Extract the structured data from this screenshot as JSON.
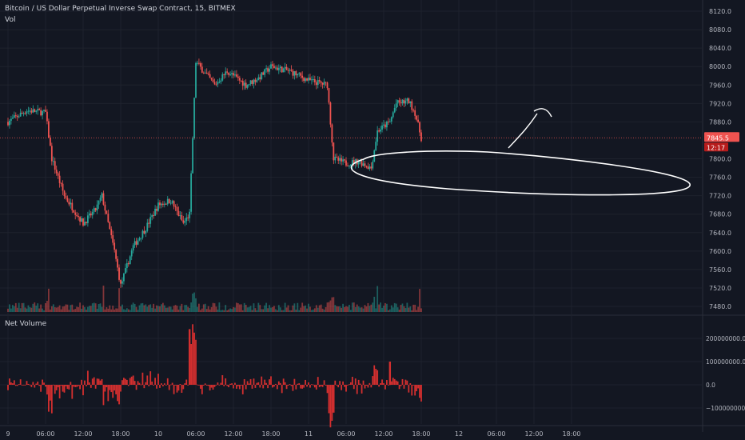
{
  "header": {
    "symbol_line": "Bitcoin / US Dollar Perpetual Inverse Swap Contract, 15, BITMEX",
    "volume_label": "Vol",
    "indicator_label": "Net Volume"
  },
  "price_axis": {
    "ticks": [
      "8120.0",
      "8080.0",
      "8040.0",
      "8000.0",
      "7960.0",
      "7920.0",
      "7880.0",
      "7800.0",
      "7760.0",
      "7720.0",
      "7680.0",
      "7640.0",
      "7600.0",
      "7560.0",
      "7520.0",
      "7480.0"
    ],
    "last_price": "7845.5",
    "countdown": "12:17"
  },
  "indicator_axis": {
    "ticks": [
      "200000000.0",
      "100000000.0",
      "0.0",
      "−100000000.0"
    ]
  },
  "time_axis": {
    "labels": [
      "9",
      "06:00",
      "12:00",
      "18:00",
      "10",
      "06:00",
      "12:00",
      "18:00",
      "11",
      "06:00",
      "12:00",
      "18:00",
      "12",
      "06:00",
      "12:00",
      "18:00"
    ]
  },
  "colors": {
    "up": "#26a69a",
    "down": "#ef5350",
    "net_volume": "#d32f2f",
    "background": "#131722",
    "price_label": "#ef5350"
  },
  "chart_data": [
    {
      "type": "candlestick",
      "title": "Bitcoin / US Dollar Perpetual Inverse Swap Contract, 15, BITMEX",
      "x_range": [
        "9 00:00",
        "12 18:00"
      ],
      "y_range": [
        7470,
        8135
      ],
      "last_price": 7845.5,
      "price_path": [
        {
          "t": "9 00:00",
          "price": 7880
        },
        {
          "t": "9 03:00",
          "price": 7905
        },
        {
          "t": "9 06:00",
          "price": 7900
        },
        {
          "t": "9 07:00",
          "price": 7800
        },
        {
          "t": "9 09:00",
          "price": 7720
        },
        {
          "t": "9 12:00",
          "price": 7660
        },
        {
          "t": "9 14:00",
          "price": 7690
        },
        {
          "t": "9 15:00",
          "price": 7720
        },
        {
          "t": "9 17:00",
          "price": 7600
        },
        {
          "t": "9 18:00",
          "price": 7525
        },
        {
          "t": "9 20:00",
          "price": 7610
        },
        {
          "t": "9 22:00",
          "price": 7650
        },
        {
          "t": "10 00:00",
          "price": 7700
        },
        {
          "t": "10 02:00",
          "price": 7710
        },
        {
          "t": "10 04:00",
          "price": 7660
        },
        {
          "t": "10 05:00",
          "price": 7680
        },
        {
          "t": "10 06:00",
          "price": 8010
        },
        {
          "t": "10 09:00",
          "price": 7960
        },
        {
          "t": "10 11:00",
          "price": 7990
        },
        {
          "t": "10 14:00",
          "price": 7960
        },
        {
          "t": "10 16:00",
          "price": 7975
        },
        {
          "t": "10 18:00",
          "price": 8000
        },
        {
          "t": "10 21:00",
          "price": 7990
        },
        {
          "t": "11 00:00",
          "price": 7970
        },
        {
          "t": "11 03:00",
          "price": 7960
        },
        {
          "t": "11 04:00",
          "price": 7800
        },
        {
          "t": "11 06:00",
          "price": 7790
        },
        {
          "t": "11 08:00",
          "price": 7795
        },
        {
          "t": "11 10:00",
          "price": 7780
        },
        {
          "t": "11 11:00",
          "price": 7860
        },
        {
          "t": "11 13:00",
          "price": 7880
        },
        {
          "t": "11 14:00",
          "price": 7920
        },
        {
          "t": "11 16:00",
          "price": 7925
        },
        {
          "t": "11 17:00",
          "price": 7900
        },
        {
          "t": "11 18:00",
          "price": 7845
        }
      ],
      "net_volume_ticks": [
        200000000,
        100000000,
        0,
        -100000000
      ],
      "net_volume_peaks": [
        {
          "t": "10 05:00",
          "value": 240000000
        },
        {
          "t": "11 04:00",
          "value": -120000000
        },
        {
          "t": "11 13:00",
          "value": 100000000
        }
      ]
    }
  ],
  "annotations": {
    "ellipse": "hand-drawn ellipse around 7760-7810 support zone",
    "arrow": "hand-drawn upward arrow from last candle"
  }
}
